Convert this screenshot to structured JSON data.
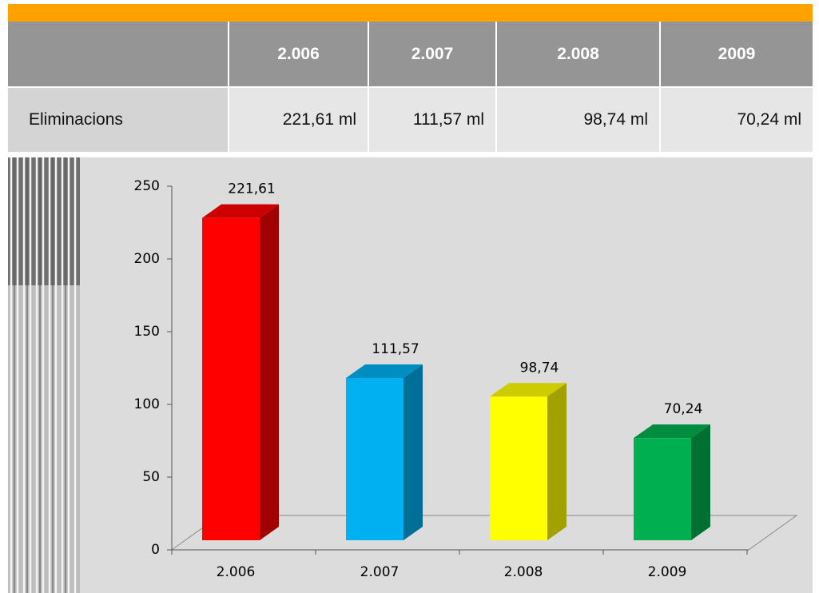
{
  "table": {
    "header": [
      "2.006",
      "2.007",
      "2.008",
      "2009"
    ],
    "row": {
      "label": "Eliminacions",
      "cells": [
        "221,61 ml",
        "111,57 ml",
        "98,74 ml",
        "70,24 ml"
      ]
    }
  },
  "chart_data": {
    "type": "bar3d",
    "categories": [
      "2.006",
      "2.007",
      "2.008",
      "2.009"
    ],
    "values": [
      221.61,
      111.57,
      98.74,
      70.24
    ],
    "value_labels": [
      "221,61",
      "111,57",
      "98,74",
      "70,24"
    ],
    "colors": [
      "#ff0000",
      "#00b0f0",
      "#ffff00",
      "#00b050"
    ],
    "ylim": [
      0,
      250
    ],
    "yticks": [
      0,
      50,
      100,
      150,
      200,
      250
    ]
  }
}
